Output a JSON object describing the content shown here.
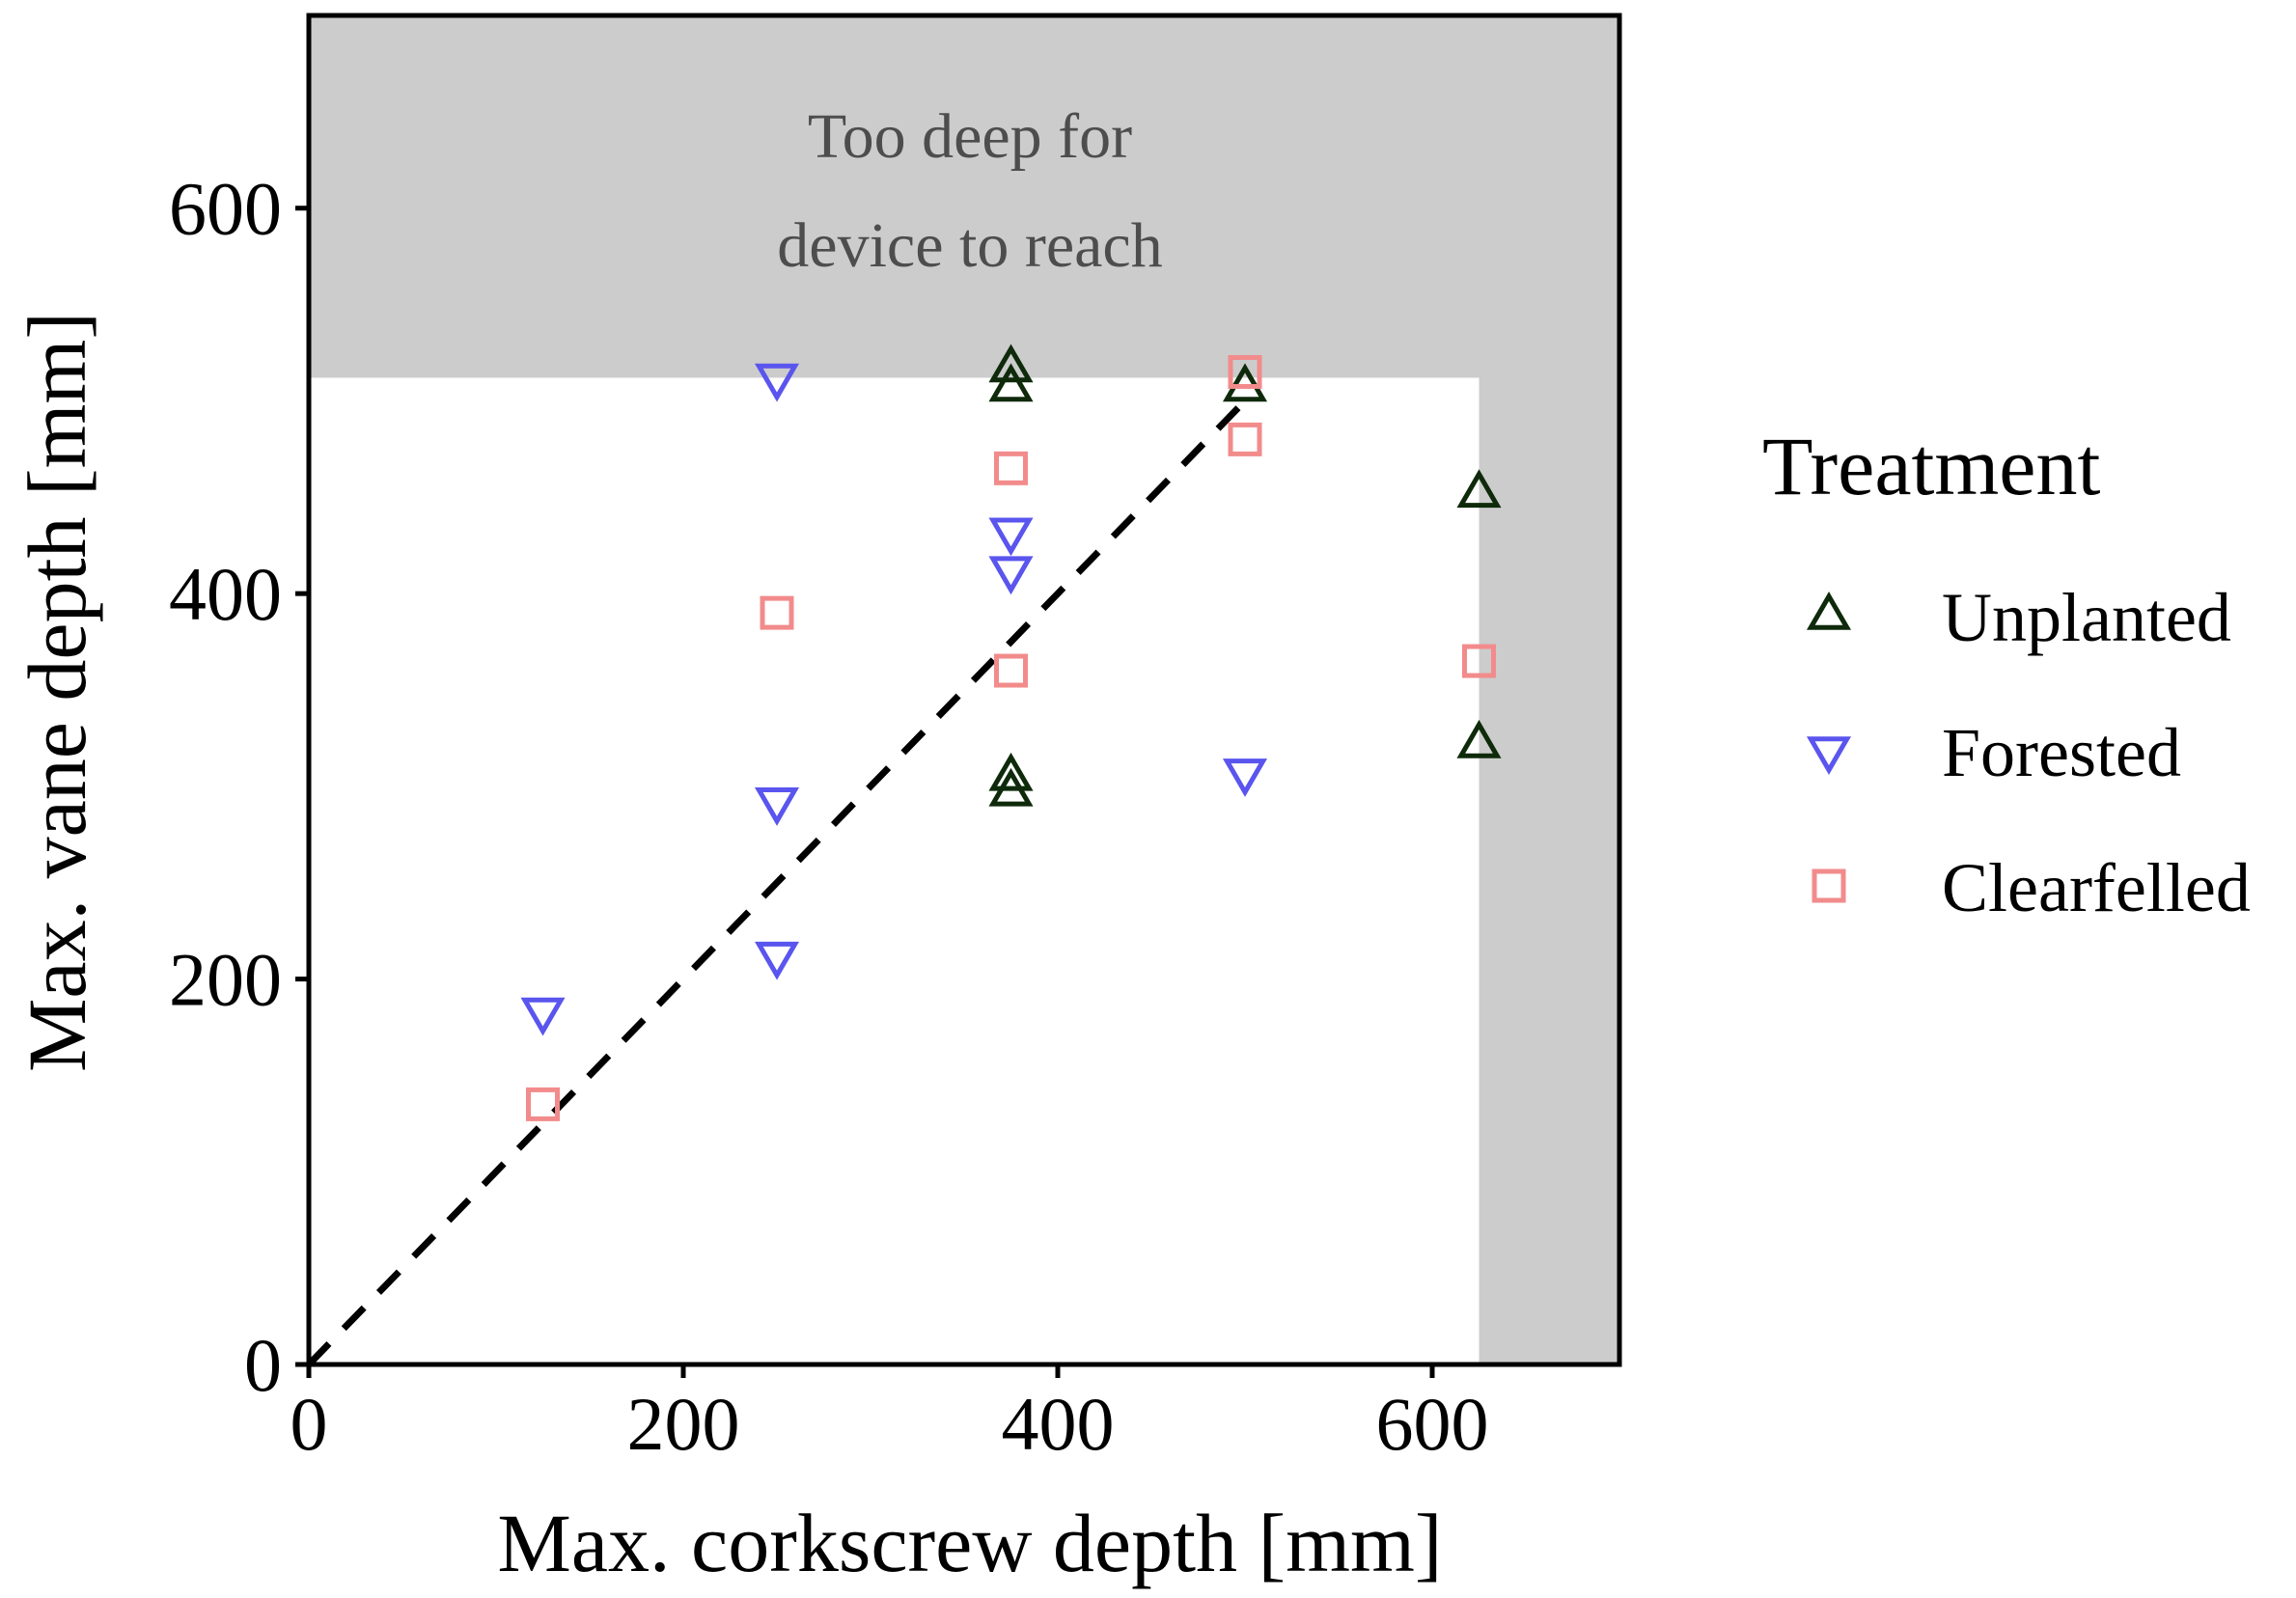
{
  "chart_data": {
    "type": "scatter",
    "title": "",
    "xlabel": "Max. corkscrew depth [mm]",
    "ylabel": "Max. vane depth [mm]",
    "xlim": [
      0,
      700
    ],
    "ylim": [
      0,
      700
    ],
    "x_ticks": [
      0,
      200,
      400,
      600
    ],
    "y_ticks": [
      0,
      200,
      400,
      600
    ],
    "x_tick_labels": [
      "0",
      "200",
      "400",
      "600"
    ],
    "y_tick_labels": [
      "0",
      "200",
      "400",
      "600"
    ],
    "grid": false,
    "reference_line": {
      "type": "1:1",
      "style": "dashed",
      "x": [
        0,
        500
      ],
      "y": [
        0,
        500
      ]
    },
    "shaded_region": {
      "description_lines": [
        "Too deep for",
        "device to reach"
      ],
      "x_threshold": 625,
      "y_threshold": 512,
      "color": "#cccccc"
    },
    "legend": {
      "title": "Treatment",
      "position": "right",
      "entries": [
        "Unplanted",
        "Forested",
        "Clearfelled"
      ]
    },
    "series": [
      {
        "name": "Unplanted",
        "marker": "triangle-up",
        "color": "#0e2a0a",
        "points": [
          [
            375,
            517
          ],
          [
            375,
            507
          ],
          [
            375,
            305
          ],
          [
            375,
            297
          ],
          [
            500,
            507
          ],
          [
            625,
            452
          ],
          [
            625,
            322
          ]
        ]
      },
      {
        "name": "Forested",
        "marker": "triangle-down",
        "color": "#5a55ee",
        "points": [
          [
            125,
            183
          ],
          [
            250,
            512
          ],
          [
            250,
            292
          ],
          [
            250,
            212
          ],
          [
            375,
            432
          ],
          [
            375,
            412
          ],
          [
            500,
            307
          ]
        ]
      },
      {
        "name": "Clearfelled",
        "marker": "square",
        "color": "#f28b8b",
        "points": [
          [
            125,
            135
          ],
          [
            250,
            390
          ],
          [
            375,
            465
          ],
          [
            375,
            360
          ],
          [
            500,
            515
          ],
          [
            500,
            480
          ],
          [
            625,
            365
          ]
        ]
      }
    ]
  }
}
